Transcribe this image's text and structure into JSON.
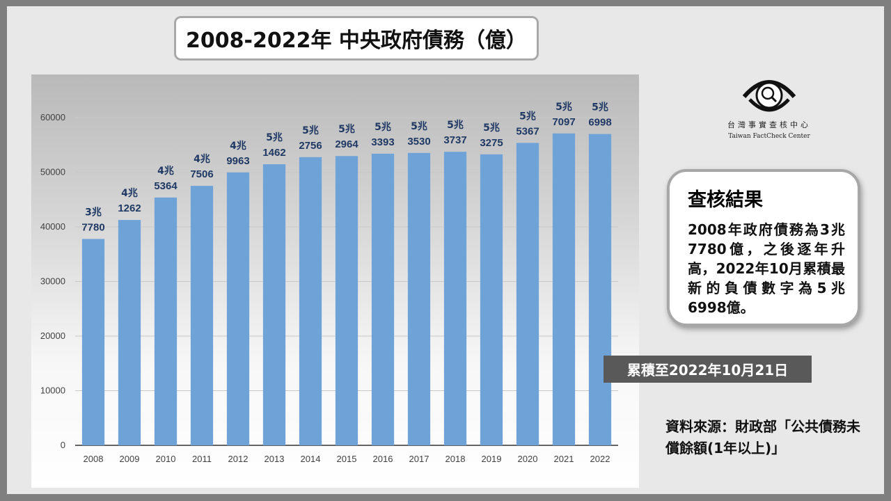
{
  "title": "2008-2022年 中央政府債務（億）",
  "logo": {
    "name_zh": "台灣事實查核中心",
    "name_en": "Taiwan FactCheck Center"
  },
  "result": {
    "heading": "查核結果",
    "text": "2008年政府債務為3兆7780億，之後逐年升高，2022年10月累積最新的負債數字為5兆6998億。"
  },
  "as_of": "累積至2022年10月21日",
  "source": "資料來源：財政部「公共債務未償餘額(1年以上)」",
  "chart_data": {
    "type": "bar",
    "categories": [
      "2008",
      "2009",
      "2010",
      "2011",
      "2012",
      "2013",
      "2014",
      "2015",
      "2016",
      "2017",
      "2018",
      "2019",
      "2020",
      "2021",
      "2022"
    ],
    "values": [
      37780,
      41262,
      45364,
      47506,
      49963,
      51462,
      52756,
      52964,
      53393,
      53530,
      53737,
      53275,
      55367,
      57097,
      56998
    ],
    "data_labels": [
      [
        "3兆",
        "7780"
      ],
      [
        "4兆",
        "1262"
      ],
      [
        "4兆",
        "5364"
      ],
      [
        "4兆",
        "7506"
      ],
      [
        "4兆",
        "9963"
      ],
      [
        "5兆",
        "1462"
      ],
      [
        "5兆",
        "2756"
      ],
      [
        "5兆",
        "2964"
      ],
      [
        "5兆",
        "3393"
      ],
      [
        "5兆",
        "3530"
      ],
      [
        "5兆",
        "3737"
      ],
      [
        "5兆",
        "3275"
      ],
      [
        "5兆",
        "5367"
      ],
      [
        "5兆",
        "7097"
      ],
      [
        "5兆",
        "6998"
      ]
    ],
    "y_ticks": [
      0,
      10000,
      20000,
      30000,
      40000,
      50000,
      60000
    ],
    "ylim": [
      0,
      60000
    ],
    "bar_color": "#6fa3d8",
    "label_color": "#1f3864",
    "grid": true
  }
}
